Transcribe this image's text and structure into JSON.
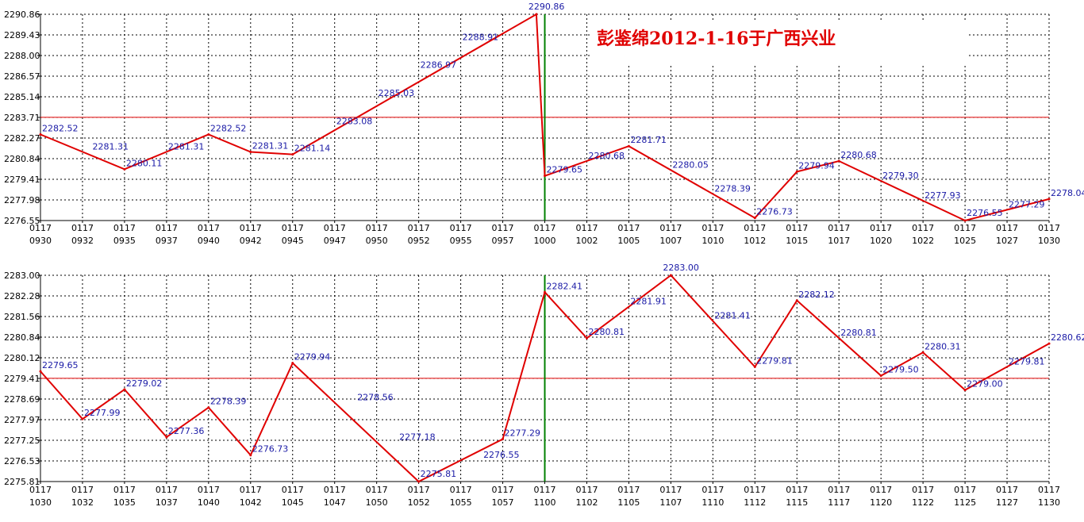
{
  "colors": {
    "line": "#e00000",
    "reference_line": "#e00000",
    "marker_line": "#008000",
    "grid": "#000000",
    "data_label": "#1a1aa6",
    "title": "#e00000",
    "background": "#ffffff"
  },
  "chart_data": [
    {
      "type": "line",
      "title": "彭鉴绵2012-1-16于广西兴业",
      "grid": "dashed",
      "x_ticks": [
        [
          "0117",
          "0930"
        ],
        [
          "0117",
          "0932"
        ],
        [
          "0117",
          "0935"
        ],
        [
          "0117",
          "0937"
        ],
        [
          "0117",
          "0940"
        ],
        [
          "0117",
          "0942"
        ],
        [
          "0117",
          "0945"
        ],
        [
          "0117",
          "0947"
        ],
        [
          "0117",
          "0950"
        ],
        [
          "0117",
          "0952"
        ],
        [
          "0117",
          "0955"
        ],
        [
          "0117",
          "0957"
        ],
        [
          "0117",
          "1000"
        ],
        [
          "0117",
          "1002"
        ],
        [
          "0117",
          "1005"
        ],
        [
          "0117",
          "1007"
        ],
        [
          "0117",
          "1010"
        ],
        [
          "0117",
          "1012"
        ],
        [
          "0117",
          "1015"
        ],
        [
          "0117",
          "1017"
        ],
        [
          "0117",
          "1020"
        ],
        [
          "0117",
          "1022"
        ],
        [
          "0117",
          "1025"
        ],
        [
          "0117",
          "1027"
        ],
        [
          "0117",
          "1030"
        ]
      ],
      "y_ticks": [
        "2290.86",
        "2289.43",
        "2288.00",
        "2286.57",
        "2285.14",
        "2283.71",
        "2282.27",
        "2280.84",
        "2279.41",
        "2277.98",
        "2276.55"
      ],
      "ylim": [
        2276.55,
        2290.86
      ],
      "reference_y": 2283.71,
      "marker_x_index": 12,
      "series": [
        {
          "values": [
            [
              0,
              2282.52,
              "2282.52"
            ],
            [
              2,
              2280.11,
              "2280.11"
            ],
            [
              4,
              2282.52,
              "2282.52"
            ],
            [
              5,
              2281.31,
              "2281.31"
            ],
            [
              6,
              2281.14,
              "2281.14"
            ],
            [
              11.8,
              2290.86,
              "2290.86"
            ],
            [
              12,
              2279.65,
              "2279.65"
            ],
            [
              14,
              2281.71,
              "2281.71"
            ],
            [
              17,
              2276.73,
              "2276.73"
            ],
            [
              18,
              2279.94,
              "2279.94"
            ],
            [
              19,
              2280.68,
              "2280.68"
            ],
            [
              22,
              2276.55,
              "2276.55"
            ],
            [
              24,
              2278.04,
              "2278.04"
            ]
          ]
        }
      ],
      "annotations": [
        [
          1.2,
          2281.31,
          "2281.31"
        ],
        [
          3,
          2281.31,
          "2281.31"
        ],
        [
          7,
          2283.08,
          "2283.08"
        ],
        [
          8,
          2285.03,
          "2285.03"
        ],
        [
          9,
          2286.97,
          "2286.97"
        ],
        [
          10,
          2288.91,
          "2288.91"
        ],
        [
          13,
          2280.68,
          "2280.68"
        ],
        [
          15,
          2280.05,
          "2280.05"
        ],
        [
          16,
          2278.39,
          "2278.39"
        ],
        [
          20,
          2279.3,
          "2279.30"
        ],
        [
          21,
          2277.93,
          "2277.93"
        ],
        [
          23,
          2277.29,
          "2277.29"
        ]
      ]
    },
    {
      "type": "line",
      "title": "",
      "grid": "dashed",
      "x_ticks": [
        [
          "0117",
          "1030"
        ],
        [
          "0117",
          "1032"
        ],
        [
          "0117",
          "1035"
        ],
        [
          "0117",
          "1037"
        ],
        [
          "0117",
          "1040"
        ],
        [
          "0117",
          "1042"
        ],
        [
          "0117",
          "1045"
        ],
        [
          "0117",
          "1047"
        ],
        [
          "0117",
          "1050"
        ],
        [
          "0117",
          "1052"
        ],
        [
          "0117",
          "1055"
        ],
        [
          "0117",
          "1057"
        ],
        [
          "0117",
          "1100"
        ],
        [
          "0117",
          "1102"
        ],
        [
          "0117",
          "1105"
        ],
        [
          "0117",
          "1107"
        ],
        [
          "0117",
          "1110"
        ],
        [
          "0117",
          "1112"
        ],
        [
          "0117",
          "1115"
        ],
        [
          "0117",
          "1117"
        ],
        [
          "0117",
          "1120"
        ],
        [
          "0117",
          "1122"
        ],
        [
          "0117",
          "1125"
        ],
        [
          "0117",
          "1127"
        ],
        [
          "0117",
          "1130"
        ]
      ],
      "y_ticks": [
        "2283.00",
        "2282.28",
        "2281.56",
        "2280.84",
        "2280.12",
        "2279.41",
        "2278.69",
        "2277.97",
        "2277.25",
        "2276.53",
        "2275.81"
      ],
      "ylim": [
        2275.81,
        2283.0
      ],
      "reference_y": 2279.41,
      "marker_x_index": 12,
      "series": [
        {
          "values": [
            [
              0,
              2279.65,
              "2279.65"
            ],
            [
              1,
              2277.99,
              "2277.99"
            ],
            [
              2,
              2279.02,
              "2279.02"
            ],
            [
              3,
              2277.36,
              "2277.36"
            ],
            [
              4,
              2278.39,
              "2278.39"
            ],
            [
              5,
              2276.73,
              "2276.73"
            ],
            [
              6,
              2279.94,
              "2279.94"
            ],
            [
              9,
              2275.81,
              "2275.81"
            ],
            [
              11,
              2277.29,
              "2277.29"
            ],
            [
              12,
              2282.41,
              "2282.41"
            ],
            [
              13,
              2280.81,
              "2280.81"
            ],
            [
              15,
              2283.0,
              "2283.00"
            ],
            [
              17,
              2279.81,
              "2279.81"
            ],
            [
              18,
              2282.12,
              "2282.12"
            ],
            [
              20,
              2279.5,
              "2279.50"
            ],
            [
              21,
              2280.31,
              "2280.31"
            ],
            [
              22,
              2279.0,
              "2279.00"
            ],
            [
              24,
              2280.62,
              "2280.62"
            ]
          ]
        }
      ],
      "annotations": [
        [
          7.5,
          2278.56,
          "2278.56"
        ],
        [
          8.5,
          2277.18,
          "2277.18"
        ],
        [
          10.5,
          2276.55,
          "2276.55"
        ],
        [
          14,
          2281.91,
          "2281.91"
        ],
        [
          16,
          2281.41,
          "2281.41"
        ],
        [
          19,
          2280.81,
          "2280.81"
        ],
        [
          23,
          2279.81,
          "2279.81"
        ]
      ]
    }
  ]
}
